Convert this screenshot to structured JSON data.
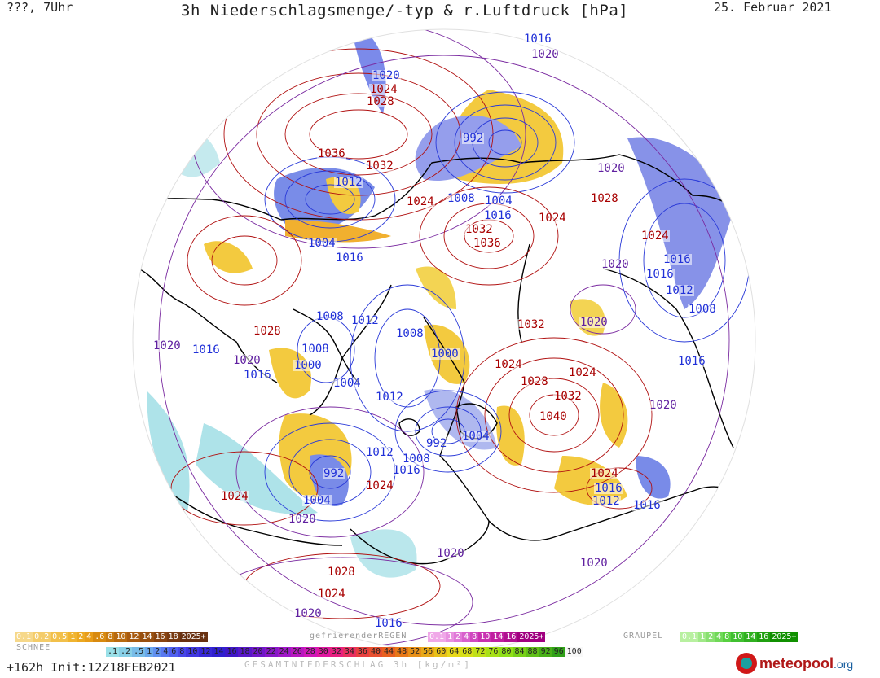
{
  "header": {
    "left": "???, 7Uhr",
    "title": "3h Niederschlagsmenge/-typ & r.Luftdruck [hPa]",
    "date": "25. Februar 2021"
  },
  "pressure_labels": [
    {
      "text": "1016",
      "color": "blue"
    },
    {
      "text": "1020",
      "color": "purple"
    },
    {
      "text": "1020",
      "color": "blue"
    },
    {
      "text": "1024",
      "color": "red"
    },
    {
      "text": "1028",
      "color": "red"
    },
    {
      "text": "992",
      "color": "blue"
    },
    {
      "text": "1036",
      "color": "red"
    },
    {
      "text": "1032",
      "color": "red"
    },
    {
      "text": "1012",
      "color": "blue"
    },
    {
      "text": "1024",
      "color": "red"
    },
    {
      "text": "1008",
      "color": "blue"
    },
    {
      "text": "1004",
      "color": "blue"
    },
    {
      "text": "1016",
      "color": "blue"
    },
    {
      "text": "1024",
      "color": "red"
    },
    {
      "text": "1020",
      "color": "purple"
    },
    {
      "text": "1028",
      "color": "red"
    },
    {
      "text": "1004",
      "color": "blue"
    },
    {
      "text": "1016",
      "color": "blue"
    },
    {
      "text": "1032",
      "color": "red"
    },
    {
      "text": "1036",
      "color": "red"
    },
    {
      "text": "1024",
      "color": "red"
    },
    {
      "text": "1020",
      "color": "purple"
    },
    {
      "text": "1016",
      "color": "blue"
    },
    {
      "text": "1016",
      "color": "blue"
    },
    {
      "text": "1012",
      "color": "blue"
    },
    {
      "text": "1008",
      "color": "blue"
    },
    {
      "text": "1008",
      "color": "blue"
    },
    {
      "text": "1012",
      "color": "blue"
    },
    {
      "text": "1008",
      "color": "blue"
    },
    {
      "text": "1032",
      "color": "red"
    },
    {
      "text": "1020",
      "color": "purple"
    },
    {
      "text": "1028",
      "color": "red"
    },
    {
      "text": "1020",
      "color": "purple"
    },
    {
      "text": "1016",
      "color": "blue"
    },
    {
      "text": "1020",
      "color": "purple"
    },
    {
      "text": "1008",
      "color": "blue"
    },
    {
      "text": "1000",
      "color": "blue"
    },
    {
      "text": "1016",
      "color": "blue"
    },
    {
      "text": "1000",
      "color": "blue"
    },
    {
      "text": "1004",
      "color": "blue"
    },
    {
      "text": "1024",
      "color": "red"
    },
    {
      "text": "1028",
      "color": "red"
    },
    {
      "text": "1024",
      "color": "red"
    },
    {
      "text": "1016",
      "color": "blue"
    },
    {
      "text": "1012",
      "color": "blue"
    },
    {
      "text": "1032",
      "color": "red"
    },
    {
      "text": "1020",
      "color": "purple"
    },
    {
      "text": "1040",
      "color": "red"
    },
    {
      "text": "992",
      "color": "blue"
    },
    {
      "text": "1004",
      "color": "blue"
    },
    {
      "text": "1012",
      "color": "blue"
    },
    {
      "text": "1008",
      "color": "blue"
    },
    {
      "text": "1016",
      "color": "blue"
    },
    {
      "text": "992",
      "color": "blue"
    },
    {
      "text": "1024",
      "color": "red"
    },
    {
      "text": "1024",
      "color": "red"
    },
    {
      "text": "1016",
      "color": "blue"
    },
    {
      "text": "1012",
      "color": "blue"
    },
    {
      "text": "1016",
      "color": "blue"
    },
    {
      "text": "1004",
      "color": "blue"
    },
    {
      "text": "1020",
      "color": "purple"
    },
    {
      "text": "1024",
      "color": "red"
    },
    {
      "text": "1020",
      "color": "purple"
    },
    {
      "text": "1028",
      "color": "red"
    },
    {
      "text": "1024",
      "color": "red"
    },
    {
      "text": "1020",
      "color": "purple"
    },
    {
      "text": "1016",
      "color": "blue"
    },
    {
      "text": "1020",
      "color": "purple"
    }
  ],
  "legend": {
    "snow_title": "SCHNEE",
    "snow_values": [
      "0.1",
      "0.2",
      "0.5",
      "1",
      "2",
      "4",
      ".6",
      "8",
      "10",
      "12",
      "14",
      "16",
      "18",
      "2025+"
    ],
    "freezing_title": "gefrierenderREGEN",
    "freezing_values": [
      "0.1",
      "1",
      "2",
      "4",
      "8",
      "10",
      "14",
      "16",
      "2025+"
    ],
    "graupel_title": "GRAUPEL",
    "graupel_values": [
      "0.1",
      "1",
      "2",
      "4",
      "8",
      "10",
      "14",
      "16",
      "2025+"
    ],
    "total_values": [
      ".1",
      ".2",
      ".5",
      "1",
      "2",
      "4",
      "6",
      "8",
      "10",
      "12",
      "14",
      "16",
      "18",
      "20",
      "22",
      "24",
      "26",
      "28",
      "30",
      "32",
      "34",
      "36",
      "40",
      "44",
      "48",
      "52",
      "56",
      "60",
      "64",
      "68",
      "72",
      "76",
      "80",
      "84",
      "88",
      "92",
      "96",
      "100"
    ],
    "total_caption": "GESAMTNIEDERSCHLAG 3h [kg/m²]"
  },
  "footer": {
    "run": "+162h Init:12Z18FEB2021",
    "logo_main": "meteopool",
    "logo_tld": ".org"
  },
  "colors": {
    "isobar_high": "#b01010",
    "isobar_low": "#2a3ad8",
    "isobar_mid": "#6a2aa8",
    "precip_rain": "#f0c020",
    "precip_snow": "#80d8e0",
    "coast": "#000000"
  }
}
